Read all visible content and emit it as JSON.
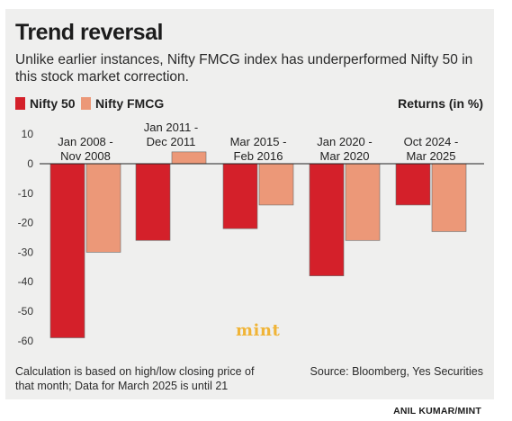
{
  "header": {
    "title": "Trend reversal",
    "subtitle": "Unlike earlier instances, Nifty FMCG index has underperformed Nifty 50 in this stock market correction."
  },
  "legend": {
    "items": [
      {
        "label": "Nifty 50",
        "color": "#d4202a"
      },
      {
        "label": "Nifty FMCG",
        "color": "#ec9878"
      }
    ],
    "returns_label": "Returns (in %)"
  },
  "chart_data": {
    "type": "bar",
    "categories": [
      [
        "Jan 2008 -",
        "Nov 2008"
      ],
      [
        "Jan 2011 -",
        "Dec 2011"
      ],
      [
        "Mar 2015 -",
        "Feb 2016"
      ],
      [
        "Jan 2020 -",
        "Mar 2020"
      ],
      [
        "Oct 2024 -",
        "Mar 2025"
      ]
    ],
    "series": [
      {
        "name": "Nifty 50",
        "color": "#d4202a",
        "values": [
          -59,
          -26,
          -22,
          -38,
          -14
        ]
      },
      {
        "name": "Nifty FMCG",
        "color": "#ec9878",
        "values": [
          -30,
          4,
          -14,
          -26,
          -23
        ]
      }
    ],
    "yticks": [
      10,
      0,
      -10,
      -20,
      -30,
      -40,
      -50,
      -60
    ],
    "ylim": [
      -61,
      11
    ],
    "ylabel": "Returns (in %)",
    "legend_position": "top-left",
    "grid": false
  },
  "footer": {
    "footnote": "Calculation is based on high/low closing price of that month; Data for March 2025 is until 21",
    "source": "Source: Bloomberg, Yes Securities",
    "credit": "ANIL KUMAR/MINT",
    "watermark": "mint"
  }
}
